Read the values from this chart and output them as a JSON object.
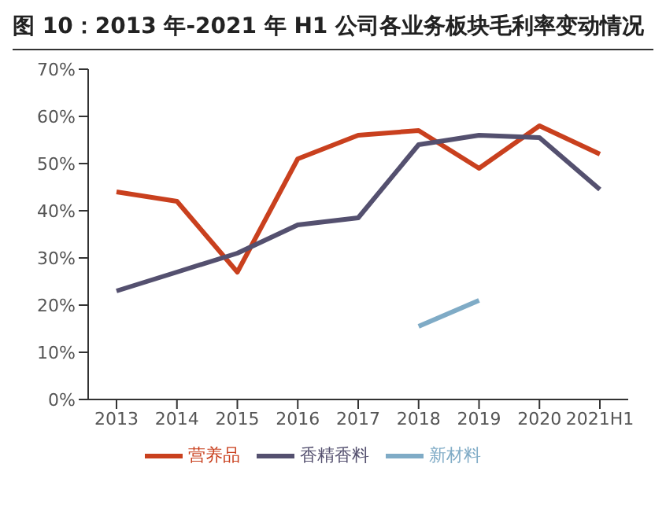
{
  "chart_data": {
    "type": "line",
    "title": "图 10：2013 年-2021 年 H1 公司各业务板块毛利率变动情况",
    "categories": [
      "2013",
      "2014",
      "2015",
      "2016",
      "2017",
      "2018",
      "2019",
      "2020",
      "2021H1"
    ],
    "series": [
      {
        "name": "营养品",
        "color": "#c9401e",
        "values": [
          44,
          42,
          27,
          51,
          56,
          57,
          49,
          58,
          52
        ]
      },
      {
        "name": "香精香料",
        "color": "#54506f",
        "values": [
          23,
          27,
          31,
          37,
          38.5,
          54,
          56,
          55.5,
          44.5
        ]
      },
      {
        "name": "新材料",
        "color": "#7fabc6",
        "values": [
          null,
          null,
          null,
          null,
          null,
          15.5,
          21,
          null,
          null
        ]
      }
    ],
    "ylim": [
      0,
      70
    ],
    "yticks": [
      {
        "value": 0,
        "label": "0%"
      },
      {
        "value": 10,
        "label": "10%"
      },
      {
        "value": 20,
        "label": "20%"
      },
      {
        "value": 30,
        "label": "30%"
      },
      {
        "value": 40,
        "label": "40%"
      },
      {
        "value": 50,
        "label": "50%"
      },
      {
        "value": 60,
        "label": "60%"
      },
      {
        "value": 70,
        "label": "70%"
      }
    ],
    "grid": false,
    "legend": "bottom",
    "marker": "none",
    "line_style": "solid"
  }
}
